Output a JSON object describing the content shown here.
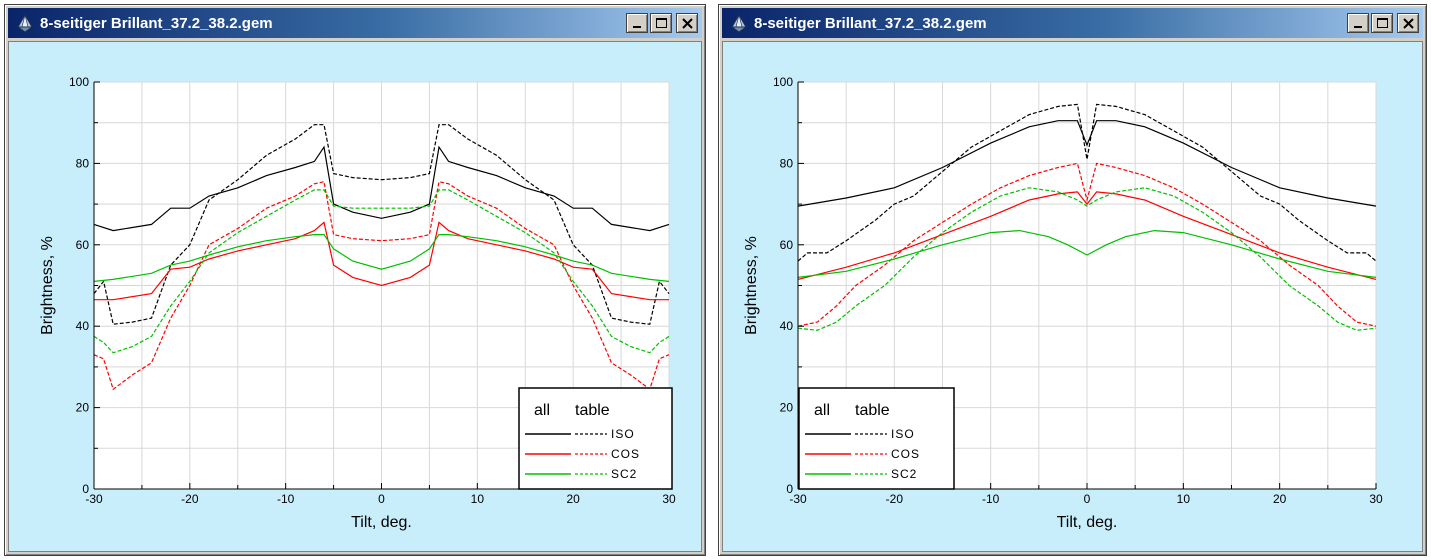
{
  "windows": [
    {
      "title": "8-seitiger Brillant_37.2_38.2.gem",
      "chart_data": {
        "type": "line",
        "xlabel": "Tilt, deg.",
        "ylabel": "Brightness, %",
        "xlim": [
          -30,
          30
        ],
        "ylim": [
          0,
          100
        ],
        "xticks": [
          -30,
          -20,
          -10,
          0,
          10,
          20,
          30
        ],
        "yticks": [
          0,
          20,
          40,
          60,
          80,
          100
        ],
        "grid": true,
        "legend": {
          "position": "bottom-right",
          "headers": [
            "all",
            "table"
          ],
          "entries": [
            "ISO",
            "COS",
            "SC2"
          ]
        },
        "series": [
          {
            "name": "ISO",
            "group": "all",
            "style": "solid",
            "color": "#000000",
            "x": [
              -30,
              -28,
              -24,
              -22,
              -20,
              -18,
              -15,
              -12,
              -9,
              -7,
              -6,
              -5,
              -3,
              0,
              3,
              5,
              6,
              7,
              9,
              12,
              15,
              18,
              20,
              22,
              24,
              28,
              30
            ],
            "y": [
              65,
              63.5,
              65,
              69,
              69,
              72,
              74,
              77,
              79,
              80.5,
              84,
              70,
              68,
              66.5,
              68,
              70,
              84,
              80.5,
              79,
              77,
              74,
              72,
              69,
              69,
              65,
              63.5,
              65
            ]
          },
          {
            "name": "ISO",
            "group": "table",
            "style": "dashed",
            "color": "#000000",
            "x": [
              -30,
              -29,
              -28,
              -26,
              -24,
              -22,
              -20,
              -18,
              -15,
              -12,
              -9,
              -7,
              -6,
              -5,
              -3,
              0,
              3,
              5,
              6,
              7,
              9,
              12,
              15,
              18,
              20,
              22,
              24,
              26,
              28,
              29,
              30
            ],
            "y": [
              48,
              51,
              40.5,
              41,
              42,
              55,
              60,
              71,
              76,
              82,
              86,
              89.5,
              89.5,
              77.5,
              76.5,
              76,
              76.5,
              77.5,
              89.5,
              89.5,
              86,
              82,
              76,
              71,
              60,
              55,
              42,
              41,
              40.5,
              51,
              48
            ]
          },
          {
            "name": "COS",
            "group": "all",
            "style": "solid",
            "color": "#ff0000",
            "x": [
              -30,
              -28,
              -24,
              -22,
              -20,
              -18,
              -15,
              -12,
              -9,
              -7,
              -6,
              -5,
              -3,
              0,
              3,
              5,
              6,
              7,
              9,
              12,
              15,
              18,
              20,
              22,
              24,
              28,
              30
            ],
            "y": [
              46.5,
              46.5,
              48,
              54,
              54.5,
              56.5,
              58.5,
              60,
              61.5,
              63.5,
              65.5,
              55,
              52,
              50,
              52,
              55,
              65.5,
              63.5,
              61.5,
              60,
              58.5,
              56.5,
              54.5,
              54,
              48,
              46.5,
              46.5
            ]
          },
          {
            "name": "COS",
            "group": "table",
            "style": "dashed",
            "color": "#ff0000",
            "x": [
              -30,
              -29,
              -28,
              -26,
              -24,
              -22,
              -20,
              -18,
              -15,
              -12,
              -9,
              -7,
              -6,
              -5,
              -3,
              0,
              3,
              5,
              6,
              7,
              9,
              12,
              15,
              18,
              20,
              22,
              24,
              26,
              28,
              29,
              30
            ],
            "y": [
              33,
              32,
              24.5,
              28,
              31,
              42,
              50,
              60,
              64,
              69,
              72,
              75,
              75.5,
              62.5,
              61.5,
              61,
              61.5,
              62.5,
              75.5,
              75,
              72,
              69,
              64,
              60,
              50,
              42,
              31,
              28,
              24.5,
              32,
              33
            ]
          },
          {
            "name": "SC2",
            "group": "all",
            "style": "solid",
            "color": "#00c000",
            "x": [
              -30,
              -28,
              -24,
              -22,
              -20,
              -18,
              -15,
              -12,
              -9,
              -7,
              -6,
              -5,
              -3,
              0,
              3,
              5,
              6,
              7,
              9,
              12,
              15,
              18,
              20,
              22,
              24,
              28,
              30
            ],
            "y": [
              51,
              51.5,
              53,
              55,
              56,
              57.5,
              59.5,
              61,
              62,
              62.5,
              62.5,
              59,
              56,
              54,
              56,
              59,
              62.5,
              62.5,
              62,
              61,
              59.5,
              57.5,
              56,
              55,
              53,
              51.5,
              51
            ]
          },
          {
            "name": "SC2",
            "group": "table",
            "style": "dashed",
            "color": "#00c000",
            "x": [
              -30,
              -29,
              -28,
              -26,
              -24,
              -22,
              -20,
              -18,
              -15,
              -12,
              -9,
              -7,
              -6,
              -5,
              -3,
              0,
              3,
              5,
              6,
              7,
              9,
              12,
              15,
              18,
              20,
              22,
              24,
              26,
              28,
              29,
              30
            ],
            "y": [
              37.5,
              36,
              33.5,
              35,
              37.5,
              45,
              51,
              58,
              63,
              67,
              71,
              73.5,
              73.5,
              69.5,
              69,
              69,
              69,
              69.5,
              73.5,
              73.5,
              71,
              67,
              63,
              58,
              51,
              45,
              37.5,
              35,
              33.5,
              36,
              37.5
            ]
          }
        ]
      }
    },
    {
      "title": "8-seitiger Brillant_37.2_38.2.gem",
      "chart_data": {
        "type": "line",
        "xlabel": "Tilt, deg.",
        "ylabel": "Brightness, %",
        "xlim": [
          -30,
          30
        ],
        "ylim": [
          0,
          100
        ],
        "xticks": [
          -30,
          -20,
          -10,
          0,
          10,
          20,
          30
        ],
        "yticks": [
          0,
          20,
          40,
          60,
          80,
          100
        ],
        "grid": true,
        "legend": {
          "position": "bottom-left",
          "headers": [
            "all",
            "table"
          ],
          "entries": [
            "ISO",
            "COS",
            "SC2"
          ]
        },
        "series": [
          {
            "name": "ISO",
            "group": "all",
            "style": "solid",
            "color": "#000000",
            "x": [
              -30,
              -25,
              -20,
              -15,
              -10,
              -6,
              -3,
              -1,
              0,
              1,
              3,
              6,
              10,
              15,
              20,
              25,
              30
            ],
            "y": [
              69.5,
              71.5,
              74,
              79,
              85,
              89,
              90.5,
              90.5,
              84.5,
              90.5,
              90.5,
              89,
              85,
              79,
              74,
              71.5,
              69.5
            ]
          },
          {
            "name": "ISO",
            "group": "table",
            "style": "dashed",
            "color": "#000000",
            "x": [
              -30,
              -29,
              -27,
              -25,
              -22,
              -20,
              -18,
              -15,
              -12,
              -9,
              -6,
              -3,
              -1,
              0,
              1,
              3,
              6,
              9,
              12,
              15,
              18,
              20,
              22,
              25,
              27,
              29,
              30
            ],
            "y": [
              56,
              58,
              58,
              61,
              66,
              70,
              72,
              78,
              84,
              88,
              92,
              94,
              94.5,
              81,
              94.5,
              94,
              92,
              88,
              84,
              78,
              72,
              70,
              66,
              61,
              58,
              58,
              56
            ]
          },
          {
            "name": "COS",
            "group": "all",
            "style": "solid",
            "color": "#ff0000",
            "x": [
              -30,
              -25,
              -20,
              -15,
              -10,
              -6,
              -3,
              -1,
              0,
              1,
              3,
              6,
              10,
              15,
              20,
              25,
              30
            ],
            "y": [
              51.5,
              54.5,
              58,
              62.5,
              67,
              71,
              72.5,
              73,
              70,
              73,
              72.5,
              71,
              67,
              62.5,
              58,
              54.5,
              51.5
            ]
          },
          {
            "name": "COS",
            "group": "table",
            "style": "dashed",
            "color": "#ff0000",
            "x": [
              -30,
              -28,
              -26,
              -24,
              -21,
              -18,
              -15,
              -12,
              -9,
              -6,
              -3,
              -1,
              0,
              1,
              3,
              6,
              9,
              12,
              15,
              18,
              21,
              24,
              26,
              28,
              30
            ],
            "y": [
              40,
              41,
              45,
              50,
              55,
              61,
              65.5,
              70,
              74,
              77,
              79,
              80,
              71,
              80,
              79,
              77,
              74,
              70,
              65.5,
              61,
              55,
              50,
              45,
              41,
              40
            ]
          },
          {
            "name": "SC2",
            "group": "all",
            "style": "solid",
            "color": "#00c000",
            "x": [
              -30,
              -25,
              -20,
              -15,
              -10,
              -7,
              -4,
              -2,
              0,
              2,
              4,
              7,
              10,
              15,
              20,
              25,
              30
            ],
            "y": [
              52,
              53.5,
              56.5,
              60,
              63,
              63.5,
              62,
              60,
              57.5,
              60,
              62,
              63.5,
              63,
              60,
              56.5,
              53.5,
              52
            ]
          },
          {
            "name": "SC2",
            "group": "table",
            "style": "dashed",
            "color": "#00c000",
            "x": [
              -30,
              -28,
              -26,
              -24,
              -21,
              -18,
              -15,
              -12,
              -9,
              -6,
              -3,
              -1,
              0,
              1,
              3,
              6,
              9,
              12,
              15,
              18,
              21,
              24,
              26,
              28,
              30
            ],
            "y": [
              39.5,
              39,
              41,
              45,
              50,
              57,
              63,
              68,
              72,
              74,
              73,
              71,
              69.5,
              71,
              73,
              74,
              72,
              68,
              63,
              57,
              50,
              45,
              41,
              39,
              39.5
            ]
          }
        ]
      }
    }
  ]
}
